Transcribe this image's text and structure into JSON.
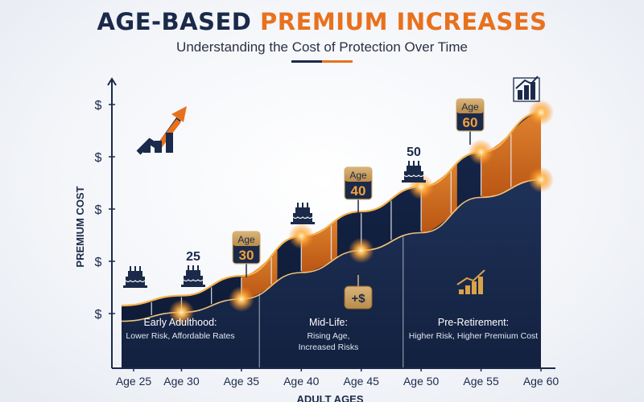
{
  "header": {
    "title_part1": "AGE-BASED",
    "title_part2": "PREMIUM INCREASES",
    "subtitle": "Understanding the Cost of Protection Over Time"
  },
  "chart_data": {
    "type": "area",
    "title": "AGE-BASED PREMIUM INCREASES",
    "subtitle": "Understanding the Cost of Protection Over Time",
    "xlabel": "ADULT AGES",
    "ylabel": "PREMIUM COST",
    "categories": [
      "Age 25",
      "Age 30",
      "Age 35",
      "Age 40",
      "Age 45",
      "Age 50",
      "Age 55",
      "Age 60"
    ],
    "x": [
      25,
      30,
      35,
      40,
      45,
      50,
      55,
      60
    ],
    "y_tick_labels": [
      "$",
      "$",
      "$",
      "$",
      "$"
    ],
    "series": [
      {
        "values": [
          1.0,
          1.1,
          1.3,
          1.7,
          1.95,
          2.2,
          2.55,
          2.95
        ]
      },
      {
        "values": [
          0.05,
          0.15,
          0.3,
          0.6,
          0.85,
          1.05,
          1.45,
          1.65
        ]
      }
    ],
    "milestones": [
      {
        "age": 25,
        "label": "25",
        "icon": "birthday-cake-icon"
      },
      {
        "age": 35,
        "label": "Age 30",
        "top": "Age",
        "bottom": "30"
      },
      {
        "age": 40,
        "label": "",
        "icon": "birthday-cake-icon"
      },
      {
        "age": 45,
        "label": "Age 40",
        "top": "Age",
        "bottom": "40"
      },
      {
        "age": 50,
        "label": "50",
        "icon": "birthday-cake-icon"
      },
      {
        "age": 55,
        "label": "Age 60",
        "top": "Age",
        "bottom": "60"
      }
    ],
    "annotations": [
      {
        "title": "Early Adulthood:",
        "lines": [
          "Lower Risk, Affordable Rates"
        ]
      },
      {
        "title": "Mid-Life:",
        "lines": [
          "Rising Age,",
          "Increased Risks"
        ]
      },
      {
        "title": "Pre-Retirement:",
        "lines": [
          "Higher Risk, Higher Premium Cost"
        ]
      }
    ],
    "badge": "+$",
    "colors": {
      "navy": "#1b2a4a",
      "orange": "#e8711e",
      "gold": "#f2b15a"
    },
    "grid": false,
    "legend": "none"
  }
}
